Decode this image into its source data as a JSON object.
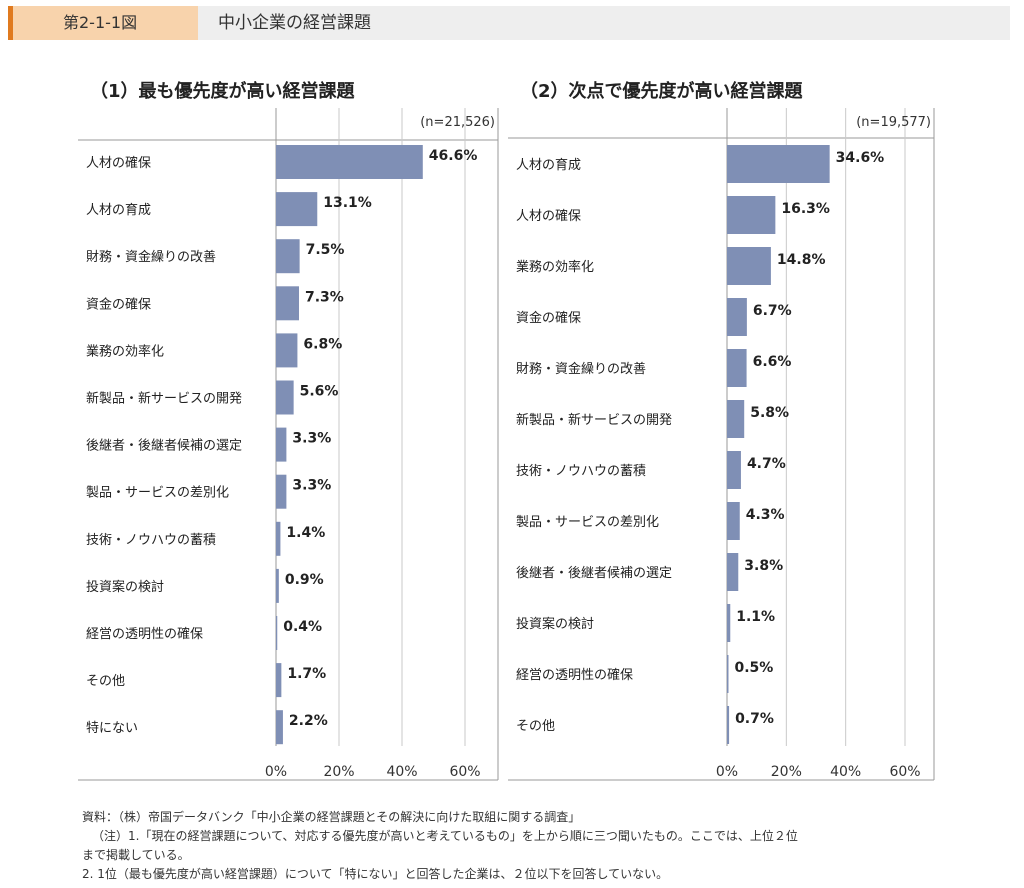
{
  "header": {
    "figure_number": "第2-1-1図",
    "title": "中小企業の経営課題"
  },
  "chart_data": [
    {
      "type": "bar",
      "orientation": "horizontal",
      "title": "（1）最も優先度が高い経営課題",
      "n_label": "(n=21,526)",
      "categories": [
        "人材の確保",
        "人材の育成",
        "財務・資金繰りの改善",
        "資金の確保",
        "業務の効率化",
        "新製品・新サービスの開発",
        "後継者・後継者候補の選定",
        "製品・サービスの差別化",
        "技術・ノウハウの蓄積",
        "投資案の検討",
        "経営の透明性の確保",
        "その他",
        "特にない"
      ],
      "values": [
        46.6,
        13.1,
        7.5,
        7.3,
        6.8,
        5.6,
        3.3,
        3.3,
        1.4,
        0.9,
        0.4,
        1.7,
        2.2
      ],
      "value_labels": [
        "46.6%",
        "13.1%",
        "7.5%",
        "7.3%",
        "6.8%",
        "5.6%",
        "3.3%",
        "3.3%",
        "1.4%",
        "0.9%",
        "0.4%",
        "1.7%",
        "2.2%"
      ],
      "xlim": [
        0,
        60
      ],
      "xticks": [
        "0%",
        "20%",
        "40%",
        "60%"
      ],
      "grid": true,
      "bar_color": "#7f8fb5"
    },
    {
      "type": "bar",
      "orientation": "horizontal",
      "title": "（2）次点で優先度が高い経営課題",
      "n_label": "(n=19,577)",
      "categories": [
        "人材の育成",
        "人材の確保",
        "業務の効率化",
        "資金の確保",
        "財務・資金繰りの改善",
        "新製品・新サービスの開発",
        "技術・ノウハウの蓄積",
        "製品・サービスの差別化",
        "後継者・後継者候補の選定",
        "投資案の検討",
        "経営の透明性の確保",
        "その他"
      ],
      "values": [
        34.6,
        16.3,
        14.8,
        6.7,
        6.6,
        5.8,
        4.7,
        4.3,
        3.8,
        1.1,
        0.5,
        0.7
      ],
      "value_labels": [
        "34.6%",
        "16.3%",
        "14.8%",
        "6.7%",
        "6.6%",
        "5.8%",
        "4.7%",
        "4.3%",
        "3.8%",
        "1.1%",
        "0.5%",
        "0.7%"
      ],
      "xlim": [
        0,
        60
      ],
      "xticks": [
        "0%",
        "20%",
        "40%",
        "60%"
      ],
      "grid": true,
      "bar_color": "#7f8fb5"
    }
  ],
  "notes": [
    "資料：（株）帝国データバンク「中小企業の経営課題とその解決に向けた取組に関する調査」",
    "（注）1.「現在の経営課題について、対応する優先度が高いと考えているもの」を上から順に三つ聞いたもの。ここでは、上位２位",
    "まで掲載している。",
    "2. 1位（最も優先度が高い経営課題）について「特にない」と回答した企業は、２位以下を回答していない。"
  ]
}
